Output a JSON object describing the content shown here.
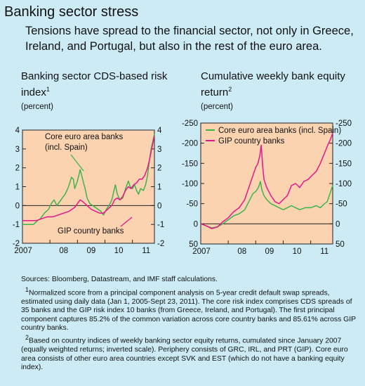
{
  "page": {
    "title": "Banking sector stress",
    "subtitle": "Tensions have spread to the financial sector, not only in Greece, Ireland, and Portugal, but also in the rest of the euro area."
  },
  "colors": {
    "background": "#ccebf5",
    "plot_area": "#fbd3b1",
    "core_series": "#3cb44b",
    "gip_series": "#e6168c"
  },
  "chart_data": [
    {
      "type": "line",
      "title": "Banking sector CDS-based risk index",
      "title_sup": "1",
      "unit": "(percent)",
      "x_tick_labels": [
        "2007",
        "08",
        "09",
        "10",
        "11"
      ],
      "xlim": [
        2007.0,
        2011.8
      ],
      "ylim": [
        -2,
        4
      ],
      "y_ticks": [
        -2,
        -1,
        0,
        1,
        2,
        3,
        4
      ],
      "y_tick_labels": [
        "-2",
        "-1",
        "0",
        "1",
        "2",
        "3",
        "4"
      ],
      "zero_line": 0,
      "series": [
        {
          "name": "Core euro area banks (incl. Spain)",
          "key": "core",
          "x": [
            2007.0,
            2007.4,
            2007.55,
            2007.65,
            2007.8,
            2007.95,
            2008.05,
            2008.15,
            2008.25,
            2008.35,
            2008.45,
            2008.55,
            2008.65,
            2008.72,
            2008.78,
            2008.85,
            2008.9,
            2008.95,
            2009.0,
            2009.05,
            2009.1,
            2009.17,
            2009.22,
            2009.28,
            2009.35,
            2009.45,
            2009.55,
            2009.65,
            2009.75,
            2009.85,
            2009.95,
            2010.05,
            2010.15,
            2010.25,
            2010.33,
            2010.38,
            2010.45,
            2010.55,
            2010.65,
            2010.75,
            2010.85,
            2010.92,
            2011.0,
            2011.08,
            2011.15,
            2011.22,
            2011.3,
            2011.4,
            2011.48,
            2011.55,
            2011.62,
            2011.68,
            2011.74,
            2011.8
          ],
          "y": [
            -1.0,
            -1.0,
            -0.8,
            -0.7,
            -0.4,
            -0.2,
            0.1,
            0.3,
            0.0,
            0.2,
            0.4,
            0.6,
            0.9,
            1.2,
            1.5,
            1.4,
            0.9,
            1.1,
            1.3,
            1.6,
            1.9,
            1.5,
            1.2,
            0.9,
            0.4,
            0.1,
            0.0,
            -0.1,
            -0.2,
            -0.3,
            -0.5,
            -0.2,
            0.0,
            0.3,
            0.8,
            1.1,
            0.6,
            0.3,
            0.4,
            0.9,
            1.3,
            1.0,
            0.9,
            1.1,
            0.8,
            0.6,
            0.9,
            0.8,
            1.1,
            1.6,
            2.4,
            3.0,
            3.4,
            3.8
          ]
        },
        {
          "name": "GIP country banks",
          "key": "gip",
          "x": [
            2007.0,
            2007.5,
            2007.7,
            2007.9,
            2008.1,
            2008.3,
            2008.5,
            2008.7,
            2008.9,
            2009.0,
            2009.1,
            2009.2,
            2009.35,
            2009.5,
            2009.65,
            2009.8,
            2009.95,
            2010.1,
            2010.25,
            2010.35,
            2010.45,
            2010.55,
            2010.65,
            2010.75,
            2010.85,
            2010.95,
            2011.05,
            2011.15,
            2011.25,
            2011.35,
            2011.45,
            2011.55,
            2011.62,
            2011.7,
            2011.76,
            2011.8
          ],
          "y": [
            -0.8,
            -0.8,
            -0.7,
            -0.6,
            -0.6,
            -0.5,
            -0.4,
            -0.3,
            -0.1,
            0.1,
            0.3,
            0.2,
            0.0,
            -0.2,
            -0.3,
            -0.4,
            -0.4,
            -0.2,
            0.0,
            0.3,
            0.4,
            0.3,
            0.5,
            0.8,
            1.0,
            0.9,
            1.1,
            1.2,
            1.4,
            1.4,
            1.6,
            2.0,
            2.4,
            3.0,
            3.4,
            3.7
          ]
        }
      ],
      "annotations": {
        "core_label": "Core euro area banks\n(incl. Spain)",
        "gip_label": "GIP country banks"
      }
    },
    {
      "type": "line",
      "title": "Cumulative weekly bank equity return",
      "title_sup": "2",
      "unit": "(percent)",
      "x_tick_labels": [
        "2007",
        "08",
        "09",
        "10",
        "11"
      ],
      "xlim": [
        2007.0,
        2011.8
      ],
      "ylim": [
        -250,
        50
      ],
      "inverted": true,
      "y_ticks_left": [
        -250,
        -200,
        -150,
        -100,
        -50,
        0,
        50
      ],
      "y_tick_labels_left": [
        "-250",
        "-200",
        "-150",
        "-100",
        "-50",
        "0",
        "50"
      ],
      "y_ticks_right": [
        -250,
        -200,
        -150,
        -100,
        -50,
        0,
        50
      ],
      "y_tick_labels_right": [
        "-250",
        "-200",
        "-150",
        "-100",
        "-50",
        "0",
        "50"
      ],
      "zero_line": 0,
      "series": [
        {
          "name": "Core euro area banks (incl. Spain)",
          "key": "core",
          "x": [
            2007.0,
            2007.2,
            2007.4,
            2007.6,
            2007.8,
            2008.0,
            2008.2,
            2008.4,
            2008.6,
            2008.75,
            2008.9,
            2009.0,
            2009.1,
            2009.17,
            2009.22,
            2009.3,
            2009.4,
            2009.55,
            2009.7,
            2009.85,
            2010.0,
            2010.15,
            2010.3,
            2010.45,
            2010.6,
            2010.8,
            2011.0,
            2011.2,
            2011.35,
            2011.5,
            2011.6,
            2011.7,
            2011.8
          ],
          "y": [
            0,
            5,
            10,
            8,
            0,
            -10,
            -20,
            -25,
            -35,
            -55,
            -75,
            -80,
            -90,
            -105,
            -85,
            -70,
            -60,
            -50,
            -45,
            -40,
            -35,
            -40,
            -45,
            -40,
            -35,
            -40,
            -40,
            -45,
            -40,
            -50,
            -55,
            -75,
            -95
          ]
        },
        {
          "name": "GIP country banks",
          "key": "gip",
          "x": [
            2007.0,
            2007.2,
            2007.4,
            2007.6,
            2007.8,
            2008.0,
            2008.2,
            2008.4,
            2008.6,
            2008.75,
            2008.9,
            2009.0,
            2009.08,
            2009.15,
            2009.2,
            2009.25,
            2009.3,
            2009.4,
            2009.55,
            2009.7,
            2009.85,
            2010.0,
            2010.15,
            2010.3,
            2010.45,
            2010.6,
            2010.75,
            2010.9,
            2011.05,
            2011.2,
            2011.35,
            2011.5,
            2011.62,
            2011.72,
            2011.8
          ],
          "y": [
            0,
            5,
            12,
            8,
            -5,
            -15,
            -30,
            -40,
            -60,
            -90,
            -120,
            -140,
            -150,
            -170,
            -195,
            -145,
            -110,
            -90,
            -70,
            -55,
            -50,
            -60,
            -70,
            -95,
            -100,
            -90,
            -105,
            -110,
            -120,
            -130,
            -150,
            -175,
            -195,
            -210,
            -225
          ]
        }
      ],
      "legend": {
        "position": "top-left",
        "entries": [
          "Core euro area banks (incl. Spain)",
          "GIP country banks"
        ]
      }
    }
  ],
  "notes": {
    "sources": "Sources: Bloomberg, Datastream, and IMF staff calculations.",
    "fn1_mark": "1",
    "fn1": "Normalized score from a principal component analysis on 5-year credit default swap spreads, estimated using daily data (Jan 1, 2005-Sept 23, 2011). The core risk index comprises CDS spreads of 35 banks and the GIP risk index 10 banks (from Greece, Ireland, and Portugal). The first principal component captures 85.2% of the common variation across core country banks and 85.61% across GIP country banks.",
    "fn2_mark": "2",
    "fn2": "Based on country indices of weekly banking sector equity returns, cumulated since January 2007 (equally weighted returns; inverted scale). Periphery consists of GRC, IRL, and PRT (GIP). Core euro area consists of other euro area countries except SVK and EST (which do not have a banking equity index)."
  }
}
